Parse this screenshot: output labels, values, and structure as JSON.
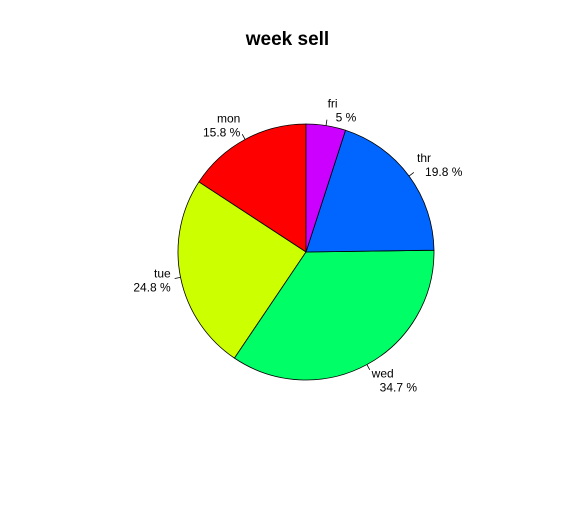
{
  "chart_data": {
    "type": "pie",
    "title": "week sell",
    "categories": [
      "mon",
      "tue",
      "wed",
      "thr",
      "fri"
    ],
    "values": [
      15.8,
      24.8,
      34.7,
      19.8,
      5
    ],
    "value_labels": [
      "15.8 %",
      "24.8 %",
      "34.7 %",
      "19.8 %",
      "5 %"
    ],
    "colors": [
      "#FF0000",
      "#CCFF00",
      "#00FF66",
      "#0066FF",
      "#CC00FF"
    ],
    "start_direction": "12 o'clock",
    "slice_order": "counter-clockwise",
    "legend": "none"
  }
}
